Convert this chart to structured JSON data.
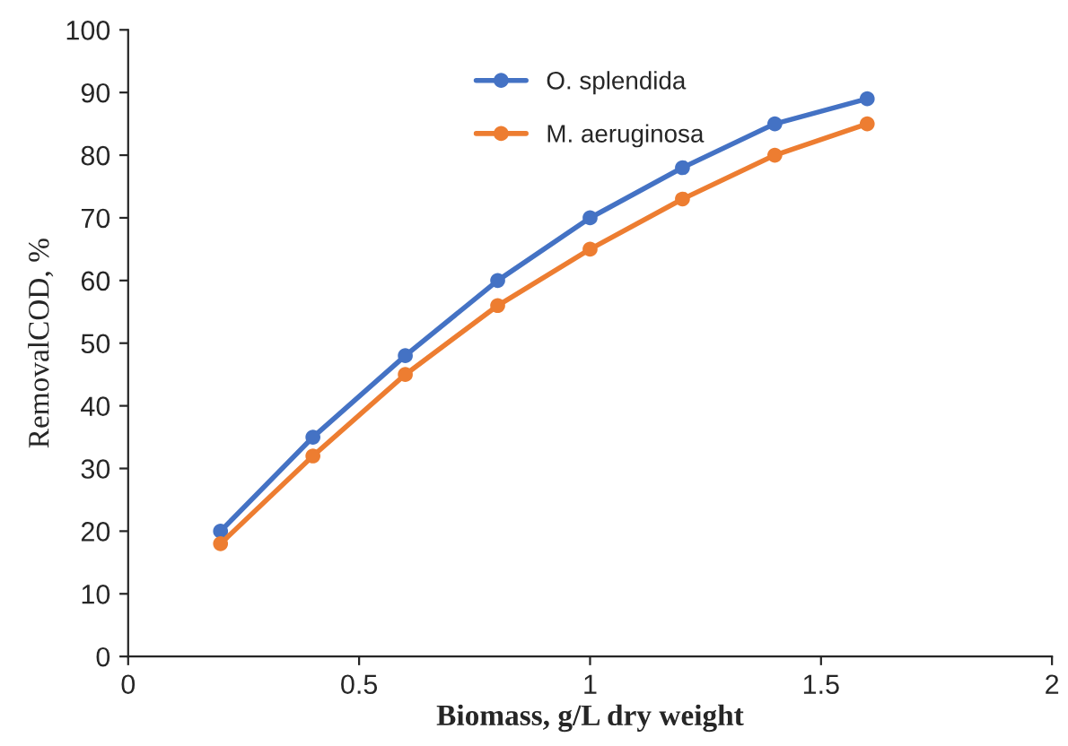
{
  "chart_data": {
    "type": "line",
    "xlabel": "Biomass, g/L dry weight",
    "ylabel": "RemovalCOD, %",
    "x": [
      0.2,
      0.4,
      0.6,
      0.8,
      1.0,
      1.2,
      1.4,
      1.6
    ],
    "series": [
      {
        "name": "O. splendida",
        "color": "#4472c4",
        "values": [
          20,
          35,
          48,
          60,
          70,
          78,
          85,
          89
        ]
      },
      {
        "name": "M. aeruginosa",
        "color": "#ed7d31",
        "values": [
          18,
          32,
          45,
          56,
          65,
          73,
          80,
          85
        ]
      }
    ],
    "xlim": [
      0,
      2
    ],
    "xticks": [
      0,
      0.5,
      1,
      1.5,
      2
    ],
    "ylim": [
      0,
      100
    ],
    "yticks": [
      0,
      10,
      20,
      30,
      40,
      50,
      60,
      70,
      80,
      90,
      100
    ],
    "grid": false,
    "legend": "top",
    "marker": "circle",
    "line_style": "solid"
  }
}
